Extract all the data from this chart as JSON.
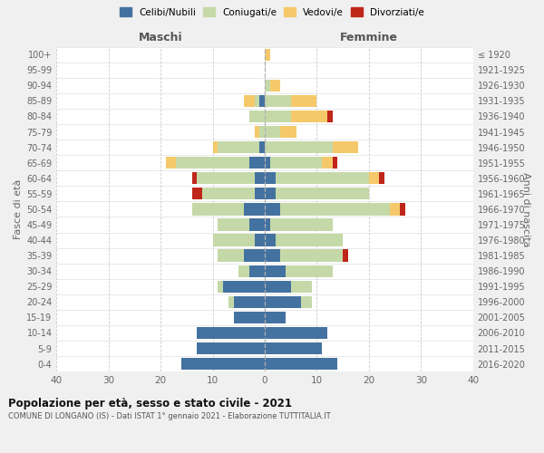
{
  "age_groups": [
    "0-4",
    "5-9",
    "10-14",
    "15-19",
    "20-24",
    "25-29",
    "30-34",
    "35-39",
    "40-44",
    "45-49",
    "50-54",
    "55-59",
    "60-64",
    "65-69",
    "70-74",
    "75-79",
    "80-84",
    "85-89",
    "90-94",
    "95-99",
    "100+"
  ],
  "birth_years": [
    "2016-2020",
    "2011-2015",
    "2006-2010",
    "2001-2005",
    "1996-2000",
    "1991-1995",
    "1986-1990",
    "1981-1985",
    "1976-1980",
    "1971-1975",
    "1966-1970",
    "1961-1965",
    "1956-1960",
    "1951-1955",
    "1946-1950",
    "1941-1945",
    "1936-1940",
    "1931-1935",
    "1926-1930",
    "1921-1925",
    "≤ 1920"
  ],
  "colors": {
    "celibi": "#4472a0",
    "coniugati": "#c5d9a8",
    "vedovi": "#f5c96a",
    "divorziati": "#c0251a"
  },
  "maschi": {
    "celibi": [
      16,
      13,
      13,
      6,
      6,
      8,
      3,
      4,
      2,
      3,
      4,
      2,
      2,
      3,
      1,
      0,
      0,
      1,
      0,
      0,
      0
    ],
    "coniugati": [
      0,
      0,
      0,
      0,
      1,
      1,
      2,
      5,
      8,
      6,
      10,
      10,
      11,
      14,
      8,
      1,
      3,
      1,
      0,
      0,
      0
    ],
    "vedovi": [
      0,
      0,
      0,
      0,
      0,
      0,
      0,
      0,
      0,
      0,
      0,
      0,
      0,
      2,
      1,
      1,
      0,
      2,
      0,
      0,
      0
    ],
    "divorziati": [
      0,
      0,
      0,
      0,
      0,
      0,
      0,
      0,
      0,
      0,
      0,
      2,
      1,
      0,
      0,
      0,
      0,
      0,
      0,
      0,
      0
    ]
  },
  "femmine": {
    "celibi": [
      14,
      11,
      12,
      4,
      7,
      5,
      4,
      3,
      2,
      1,
      3,
      2,
      2,
      1,
      0,
      0,
      0,
      0,
      0,
      0,
      0
    ],
    "coniugati": [
      0,
      0,
      0,
      0,
      2,
      4,
      9,
      12,
      13,
      12,
      21,
      18,
      18,
      10,
      13,
      3,
      5,
      5,
      1,
      0,
      0
    ],
    "vedovi": [
      0,
      0,
      0,
      0,
      0,
      0,
      0,
      0,
      0,
      0,
      2,
      0,
      2,
      2,
      5,
      3,
      7,
      5,
      2,
      0,
      1
    ],
    "divorziati": [
      0,
      0,
      0,
      0,
      0,
      0,
      0,
      1,
      0,
      0,
      1,
      0,
      1,
      1,
      0,
      0,
      1,
      0,
      0,
      0,
      0
    ]
  },
  "xlim": 40,
  "title": "Popolazione per età, sesso e stato civile - 2021",
  "subtitle": "COMUNE DI LONGANO (IS) - Dati ISTAT 1° gennaio 2021 - Elaborazione TUTTITALIA.IT",
  "ylabel": "Fasce di età",
  "ylabel_right": "Anni di nascita",
  "xlabel_left": "Maschi",
  "xlabel_right": "Femmine",
  "legend_labels": [
    "Celibi/Nubili",
    "Coniugati/e",
    "Vedovi/e",
    "Divorziati/e"
  ],
  "bg_color": "#f0f0f0",
  "plot_bg": "#ffffff"
}
